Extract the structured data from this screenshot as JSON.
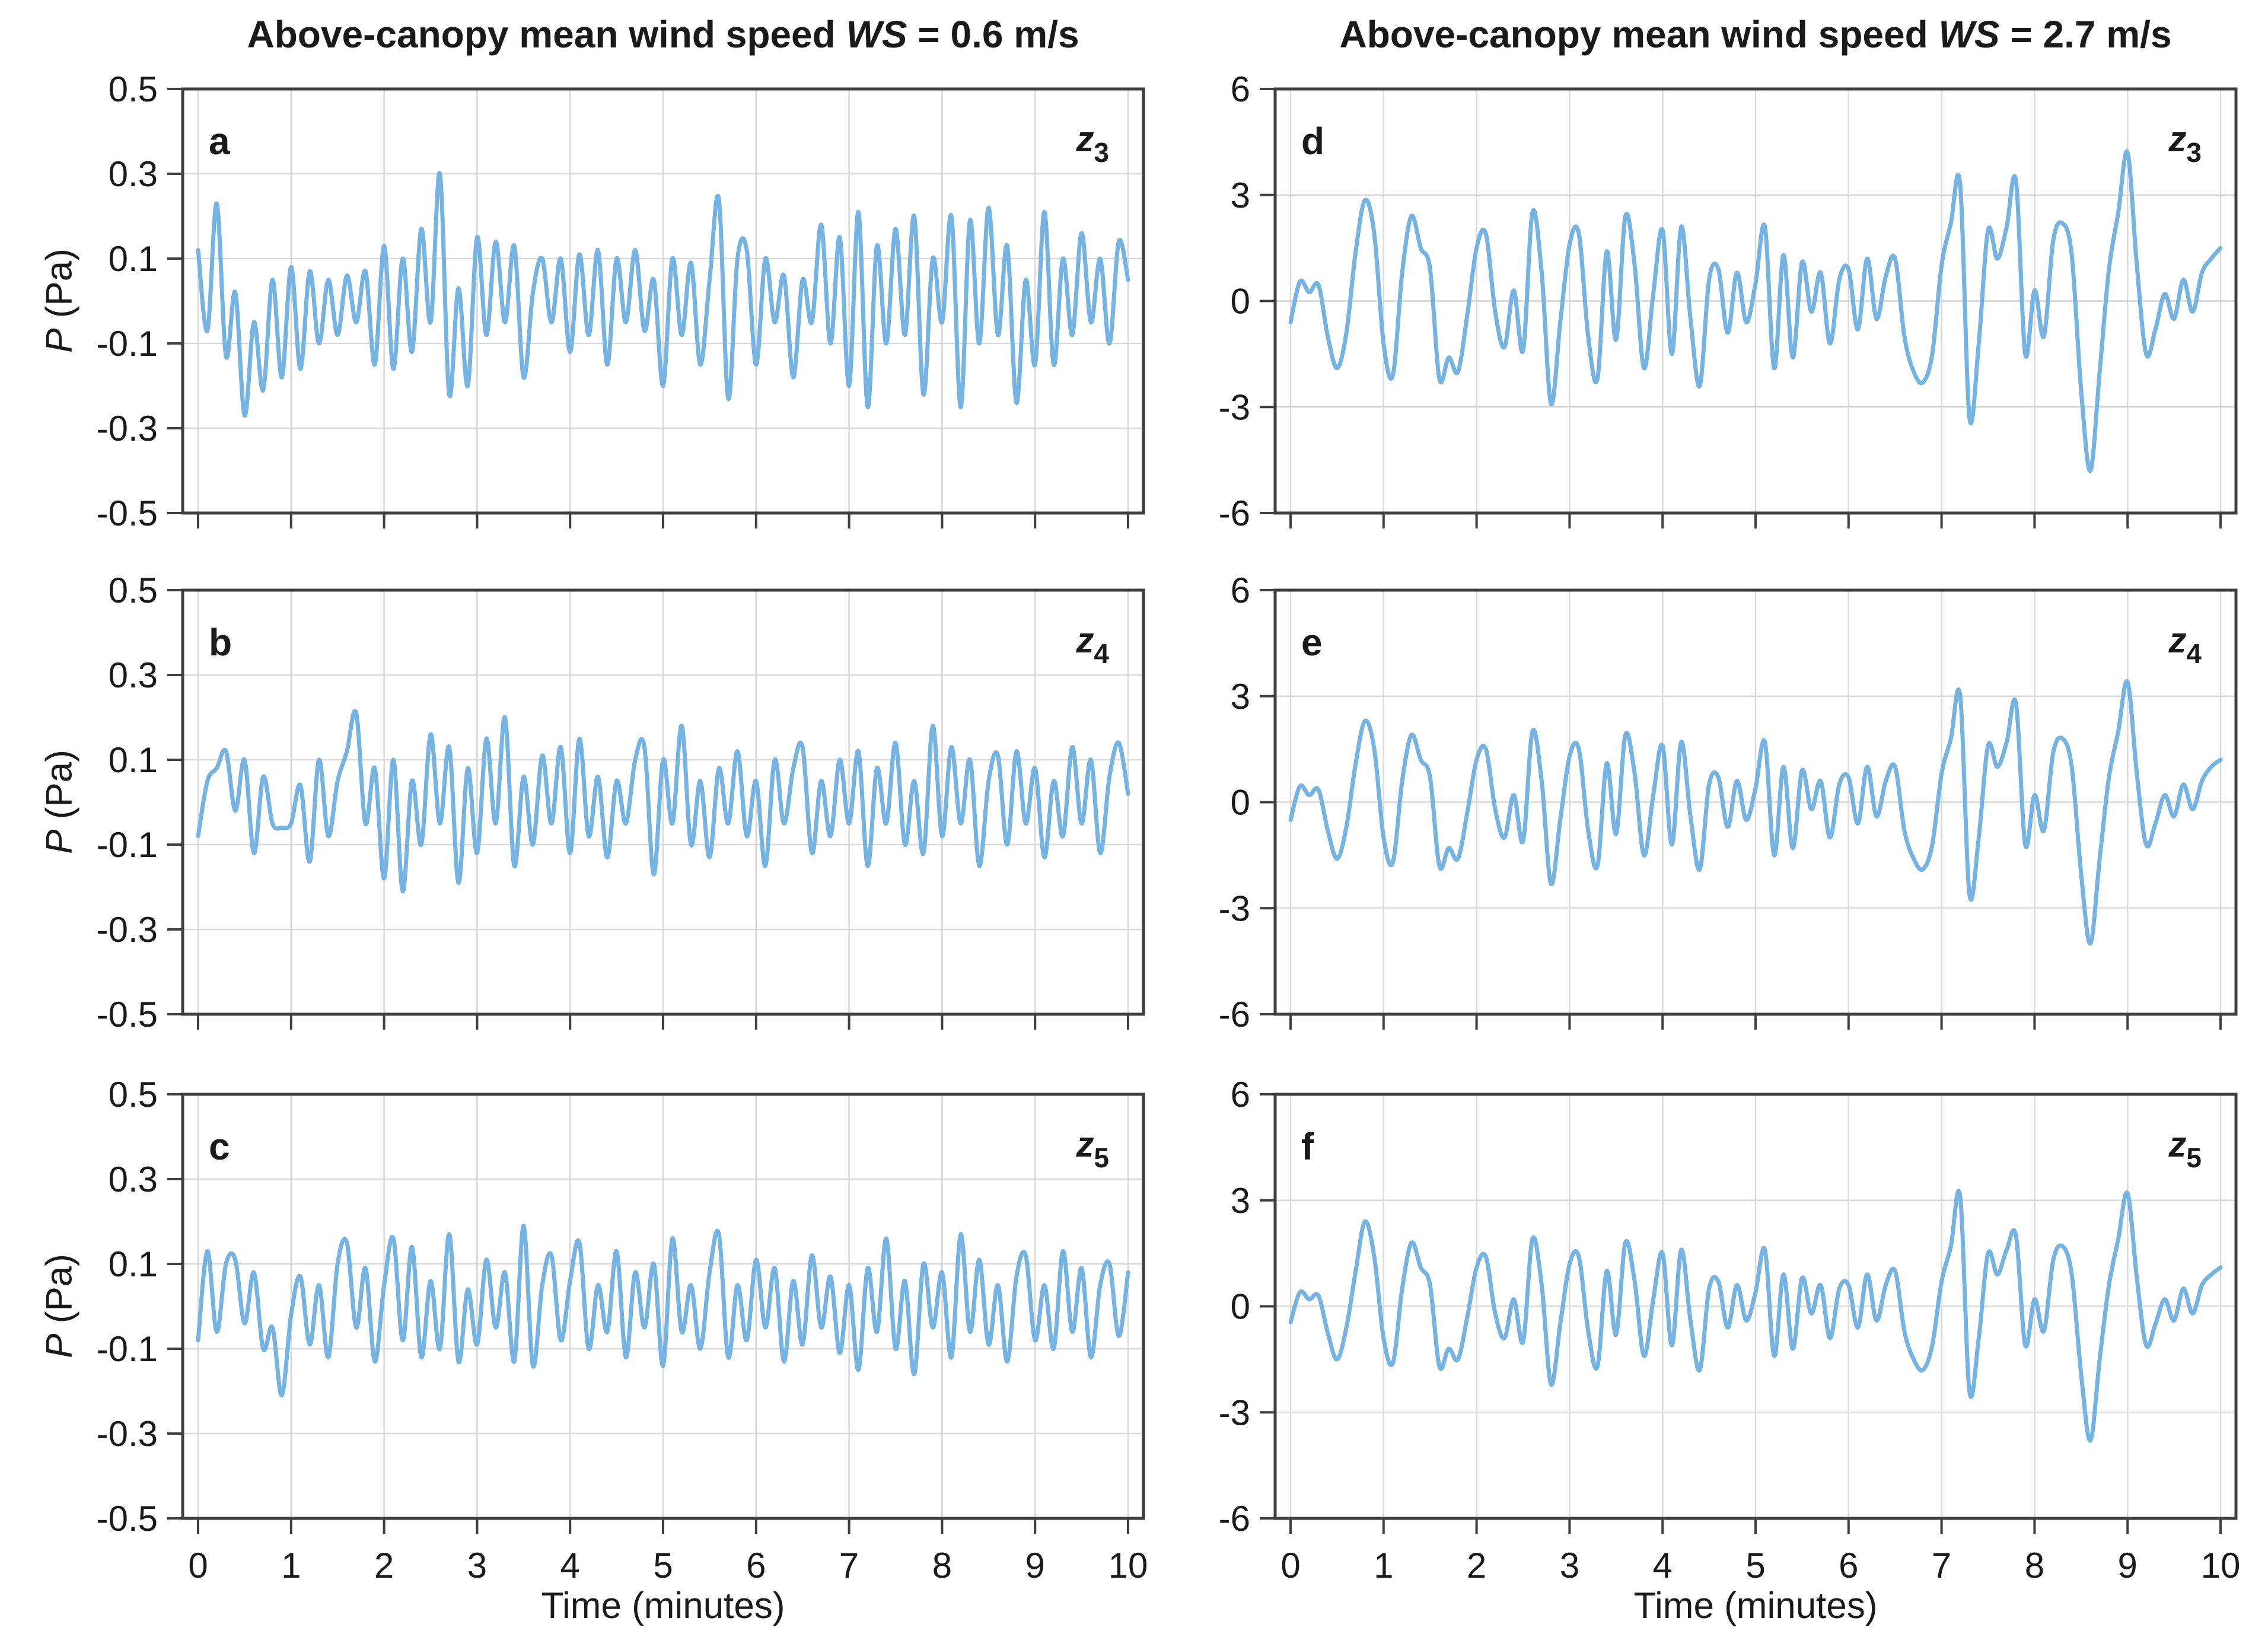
{
  "figure": {
    "titles": {
      "left": {
        "prefix": "Above-canopy mean wind speed ",
        "var": "WS",
        "suffix": " = 0.6 m/s"
      },
      "right": {
        "prefix": "Above-canopy mean wind speed ",
        "var": "WS",
        "suffix": " = 2.7 m/s"
      }
    },
    "ylabel": {
      "var": "P",
      "suffix": " (Pa)"
    },
    "xlabel": "Time (minutes)",
    "colors": {
      "line": "#74b3e2",
      "grid": "#d9d9d9",
      "axis": "#3f3f3f",
      "text": "#1a1a1a"
    }
  },
  "chart_data": [
    {
      "type": "line",
      "panel": "a",
      "column": "WS = 0.6 m/s",
      "height_label_base": "z",
      "height_label_sub": "3",
      "xlabel": "Time (minutes)",
      "ylabel": "P (Pa)",
      "grid": true,
      "xlim": [
        0,
        10
      ],
      "ylim": [
        -0.5,
        0.5
      ],
      "xticks": [
        0,
        1,
        2,
        3,
        4,
        5,
        6,
        7,
        8,
        9,
        10
      ],
      "ytick_values": [
        0.5,
        0.3,
        0.1,
        -0.1,
        -0.3,
        -0.5
      ],
      "ytick_labels": [
        "0.5",
        "0.3",
        "0.1",
        "-0.1",
        "-0.3",
        "-0.5"
      ],
      "show_x_tick_labels": false,
      "x_start_minutes": 0,
      "dt_minutes": 0.1,
      "p_pa": [
        0.12,
        -0.07,
        0.23,
        -0.13,
        0.02,
        -0.27,
        -0.05,
        -0.21,
        0.05,
        -0.18,
        0.08,
        -0.16,
        0.07,
        -0.1,
        0.05,
        -0.08,
        0.06,
        -0.05,
        0.07,
        -0.15,
        0.13,
        -0.16,
        0.1,
        -0.12,
        0.17,
        -0.05,
        0.3,
        -0.22,
        0.03,
        -0.2,
        0.15,
        -0.08,
        0.14,
        -0.05,
        0.13,
        -0.18,
        0.02,
        0.1,
        -0.05,
        0.1,
        -0.12,
        0.11,
        -0.08,
        0.12,
        -0.15,
        0.1,
        -0.05,
        0.12,
        -0.07,
        0.05,
        -0.2,
        0.1,
        -0.08,
        0.09,
        -0.15,
        0.05,
        0.24,
        -0.23,
        0.1,
        0.12,
        -0.15,
        0.1,
        -0.05,
        0.06,
        -0.18,
        0.05,
        -0.05,
        0.18,
        -0.1,
        0.15,
        -0.2,
        0.21,
        -0.25,
        0.13,
        -0.1,
        0.17,
        -0.08,
        0.2,
        -0.22,
        0.1,
        -0.05,
        0.2,
        -0.25,
        0.19,
        -0.1,
        0.22,
        -0.08,
        0.13,
        -0.24,
        0.05,
        -0.15,
        0.21,
        -0.15,
        0.1,
        -0.08,
        0.16,
        -0.05,
        0.1,
        -0.1,
        0.14,
        0.05
      ]
    },
    {
      "type": "line",
      "panel": "b",
      "column": "WS = 0.6 m/s",
      "height_label_base": "z",
      "height_label_sub": "4",
      "xlabel": "Time (minutes)",
      "ylabel": "P (Pa)",
      "grid": true,
      "xlim": [
        0,
        10
      ],
      "ylim": [
        -0.5,
        0.5
      ],
      "xticks": [
        0,
        1,
        2,
        3,
        4,
        5,
        6,
        7,
        8,
        9,
        10
      ],
      "ytick_values": [
        0.5,
        0.3,
        0.1,
        -0.1,
        -0.3,
        -0.5
      ],
      "ytick_labels": [
        "0.5",
        "0.3",
        "0.1",
        "-0.1",
        "-0.3",
        "-0.5"
      ],
      "show_x_tick_labels": false,
      "x_start_minutes": 0,
      "dt_minutes": 0.1,
      "p_pa": [
        -0.08,
        0.05,
        0.08,
        0.12,
        -0.02,
        0.1,
        -0.12,
        0.06,
        -0.05,
        -0.06,
        -0.05,
        0.04,
        -0.14,
        0.1,
        -0.08,
        0.05,
        0.12,
        0.21,
        -0.05,
        0.08,
        -0.18,
        0.1,
        -0.21,
        0.05,
        -0.1,
        0.16,
        -0.05,
        0.13,
        -0.19,
        0.08,
        -0.12,
        0.15,
        -0.05,
        0.2,
        -0.15,
        0.06,
        -0.1,
        0.11,
        -0.05,
        0.13,
        -0.12,
        0.15,
        -0.08,
        0.06,
        -0.13,
        0.05,
        -0.05,
        0.1,
        0.13,
        -0.17,
        0.1,
        -0.05,
        0.18,
        -0.1,
        0.05,
        -0.13,
        0.08,
        -0.05,
        0.12,
        -0.08,
        0.05,
        -0.15,
        0.1,
        -0.05,
        0.08,
        0.13,
        -0.12,
        0.05,
        -0.08,
        0.1,
        -0.05,
        0.12,
        -0.15,
        0.08,
        -0.05,
        0.14,
        -0.1,
        0.05,
        -0.12,
        0.18,
        -0.08,
        0.13,
        -0.05,
        0.1,
        -0.15,
        0.05,
        0.11,
        -0.1,
        0.12,
        -0.05,
        0.08,
        -0.13,
        0.05,
        -0.08,
        0.13,
        -0.05,
        0.1,
        -0.12,
        0.06,
        0.14,
        0.02
      ]
    },
    {
      "type": "line",
      "panel": "c",
      "column": "WS = 0.6 m/s",
      "height_label_base": "z",
      "height_label_sub": "5",
      "xlabel": "Time (minutes)",
      "ylabel": "P (Pa)",
      "grid": true,
      "xlim": [
        0,
        10
      ],
      "ylim": [
        -0.5,
        0.5
      ],
      "xticks": [
        0,
        1,
        2,
        3,
        4,
        5,
        6,
        7,
        8,
        9,
        10
      ],
      "ytick_values": [
        0.5,
        0.3,
        0.1,
        -0.1,
        -0.3,
        -0.5
      ],
      "ytick_labels": [
        "0.5",
        "0.3",
        "0.1",
        "-0.1",
        "-0.3",
        "-0.5"
      ],
      "show_x_tick_labels": true,
      "x_start_minutes": 0,
      "dt_minutes": 0.1,
      "p_pa": [
        -0.08,
        0.13,
        -0.06,
        0.1,
        0.11,
        -0.04,
        0.08,
        -0.1,
        -0.05,
        -0.21,
        -0.02,
        0.07,
        -0.09,
        0.05,
        -0.12,
        0.1,
        0.15,
        -0.05,
        0.09,
        -0.13,
        0.05,
        0.16,
        -0.08,
        0.14,
        -0.12,
        0.06,
        -0.1,
        0.17,
        -0.13,
        0.04,
        -0.09,
        0.11,
        -0.05,
        0.08,
        -0.13,
        0.19,
        -0.14,
        0.05,
        0.12,
        -0.08,
        0.06,
        0.15,
        -0.1,
        0.05,
        -0.06,
        0.13,
        -0.12,
        0.08,
        -0.05,
        0.1,
        -0.14,
        0.16,
        -0.06,
        0.05,
        -0.1,
        0.08,
        0.17,
        -0.12,
        0.05,
        -0.08,
        0.11,
        -0.05,
        0.09,
        -0.13,
        0.06,
        -0.09,
        0.12,
        -0.05,
        0.07,
        -0.11,
        0.05,
        -0.15,
        0.09,
        -0.06,
        0.16,
        -0.1,
        0.06,
        -0.16,
        0.1,
        -0.05,
        0.08,
        -0.12,
        0.17,
        -0.06,
        0.11,
        -0.09,
        0.05,
        -0.13,
        0.07,
        0.12,
        -0.08,
        0.05,
        -0.1,
        0.13,
        -0.06,
        0.09,
        -0.12,
        0.05,
        0.1,
        -0.07,
        0.08
      ]
    },
    {
      "type": "line",
      "panel": "d",
      "column": "WS = 2.7 m/s",
      "height_label_base": "z",
      "height_label_sub": "3",
      "xlabel": "Time (minutes)",
      "ylabel": "P (Pa)",
      "grid": true,
      "xlim": [
        0,
        10
      ],
      "ylim": [
        -6,
        6
      ],
      "xticks": [
        0,
        1,
        2,
        3,
        4,
        5,
        6,
        7,
        8,
        9,
        10
      ],
      "ytick_values": [
        6,
        3,
        0,
        -3,
        -6
      ],
      "ytick_labels": [
        "6",
        "3",
        "0",
        "-3",
        "-6"
      ],
      "show_x_tick_labels": false,
      "x_start_minutes": 0,
      "dt_minutes": 0.1,
      "p_pa": [
        -0.6,
        0.55,
        0.25,
        0.45,
        -1.0,
        -1.9,
        -0.9,
        1.4,
        2.85,
        1.9,
        -1.2,
        -2.1,
        0.8,
        2.4,
        1.5,
        0.9,
        -2.2,
        -1.6,
        -2.0,
        -0.4,
        1.5,
        1.9,
        -0.3,
        -1.3,
        0.3,
        -1.4,
        2.5,
        0.8,
        -2.9,
        -0.6,
        1.6,
        1.9,
        -1.0,
        -2.2,
        1.4,
        -1.1,
        2.4,
        1.0,
        -1.9,
        0.2,
        2.0,
        -1.5,
        2.1,
        -0.5,
        -2.4,
        0.6,
        0.9,
        -0.9,
        0.8,
        -0.6,
        0.5,
        2.1,
        -1.9,
        1.3,
        -1.6,
        1.1,
        -0.3,
        0.8,
        -1.2,
        0.6,
        0.9,
        -0.8,
        1.2,
        -0.5,
        0.7,
        1.2,
        -1.0,
        -2.0,
        -2.3,
        -1.5,
        1.0,
        2.2,
        3.3,
        -3.3,
        -1.2,
        2.0,
        1.2,
        2.1,
        3.4,
        -1.5,
        0.3,
        -1.0,
        1.7,
        2.2,
        1.3,
        -2.5,
        -4.8,
        -2.0,
        0.9,
        2.5,
        4.2,
        1.0,
        -1.5,
        -0.8,
        0.2,
        -0.5,
        0.6,
        -0.3,
        0.8,
        1.2,
        1.5
      ]
    },
    {
      "type": "line",
      "panel": "e",
      "column": "WS = 2.7 m/s",
      "height_label_base": "z",
      "height_label_sub": "4",
      "xlabel": "Time (minutes)",
      "ylabel": "P (Pa)",
      "grid": true,
      "xlim": [
        0,
        10
      ],
      "ylim": [
        -6,
        6
      ],
      "xticks": [
        0,
        1,
        2,
        3,
        4,
        5,
        6,
        7,
        8,
        9,
        10
      ],
      "ytick_values": [
        6,
        3,
        0,
        -3,
        -6
      ],
      "ytick_labels": [
        "6",
        "3",
        "0",
        "-3",
        "-6"
      ],
      "show_x_tick_labels": false,
      "x_start_minutes": 0,
      "dt_minutes": 0.1,
      "p_pa": [
        -0.5,
        0.45,
        0.2,
        0.35,
        -0.8,
        -1.6,
        -0.7,
        1.1,
        2.3,
        1.5,
        -1.0,
        -1.7,
        0.6,
        1.9,
        1.2,
        0.7,
        -1.8,
        -1.3,
        -1.6,
        -0.3,
        1.2,
        1.5,
        -0.2,
        -1.0,
        0.2,
        -1.1,
        2.0,
        0.6,
        -2.3,
        -0.5,
        1.3,
        1.5,
        -0.8,
        -1.8,
        1.1,
        -0.9,
        1.9,
        0.8,
        -1.5,
        0.2,
        1.6,
        -1.2,
        1.7,
        -0.4,
        -1.9,
        0.5,
        0.7,
        -0.7,
        0.6,
        -0.5,
        0.4,
        1.7,
        -1.5,
        1.0,
        -1.3,
        0.9,
        -0.2,
        0.6,
        -1.0,
        0.5,
        0.7,
        -0.6,
        1.0,
        -0.4,
        0.6,
        1.0,
        -0.8,
        -1.6,
        -1.9,
        -1.2,
        0.8,
        1.8,
        3.0,
        -2.6,
        -1.0,
        1.6,
        1.0,
        1.7,
        2.8,
        -1.2,
        0.2,
        -0.8,
        1.4,
        1.8,
        1.0,
        -2.0,
        -4.0,
        -1.6,
        0.7,
        2.0,
        3.4,
        0.8,
        -1.2,
        -0.6,
        0.2,
        -0.4,
        0.5,
        -0.2,
        0.6,
        1.0,
        1.2
      ]
    },
    {
      "type": "line",
      "panel": "f",
      "column": "WS = 2.7 m/s",
      "height_label_base": "z",
      "height_label_sub": "5",
      "xlabel": "Time (minutes)",
      "ylabel": "P (Pa)",
      "grid": true,
      "xlim": [
        0,
        10
      ],
      "ylim": [
        -6,
        6
      ],
      "xticks": [
        0,
        1,
        2,
        3,
        4,
        5,
        6,
        7,
        8,
        9,
        10
      ],
      "ytick_values": [
        6,
        3,
        0,
        -3,
        -6
      ],
      "ytick_labels": [
        "6",
        "3",
        "0",
        "-3",
        "-6"
      ],
      "show_x_tick_labels": true,
      "x_start_minutes": 0,
      "dt_minutes": 0.1,
      "p_pa": [
        -0.45,
        0.4,
        0.2,
        0.3,
        -0.75,
        -1.5,
        -0.6,
        1.0,
        2.4,
        1.4,
        -0.9,
        -1.6,
        0.5,
        1.8,
        1.1,
        0.6,
        -1.7,
        -1.2,
        -1.5,
        -0.3,
        1.1,
        1.4,
        -0.2,
        -0.9,
        0.2,
        -1.0,
        1.9,
        0.6,
        -2.2,
        -0.5,
        1.2,
        1.4,
        -0.7,
        -1.7,
        1.0,
        -0.8,
        1.8,
        0.7,
        -1.4,
        0.2,
        1.5,
        -1.1,
        1.6,
        -0.4,
        -1.8,
        0.5,
        0.7,
        -0.6,
        0.6,
        -0.4,
        0.4,
        1.6,
        -1.4,
        0.9,
        -1.2,
        0.8,
        -0.2,
        0.6,
        -0.9,
        0.5,
        0.6,
        -0.6,
        0.9,
        -0.4,
        0.6,
        1.0,
        -0.7,
        -1.5,
        -1.8,
        -1.1,
        0.7,
        1.7,
        3.1,
        -2.4,
        -0.9,
        1.5,
        0.9,
        1.6,
        2.0,
        -1.1,
        0.2,
        -0.7,
        1.3,
        1.7,
        0.9,
        -1.9,
        -3.8,
        -1.5,
        0.6,
        1.9,
        3.2,
        0.8,
        -1.1,
        -0.5,
        0.2,
        -0.4,
        0.5,
        -0.2,
        0.6,
        0.9,
        1.1
      ]
    }
  ]
}
